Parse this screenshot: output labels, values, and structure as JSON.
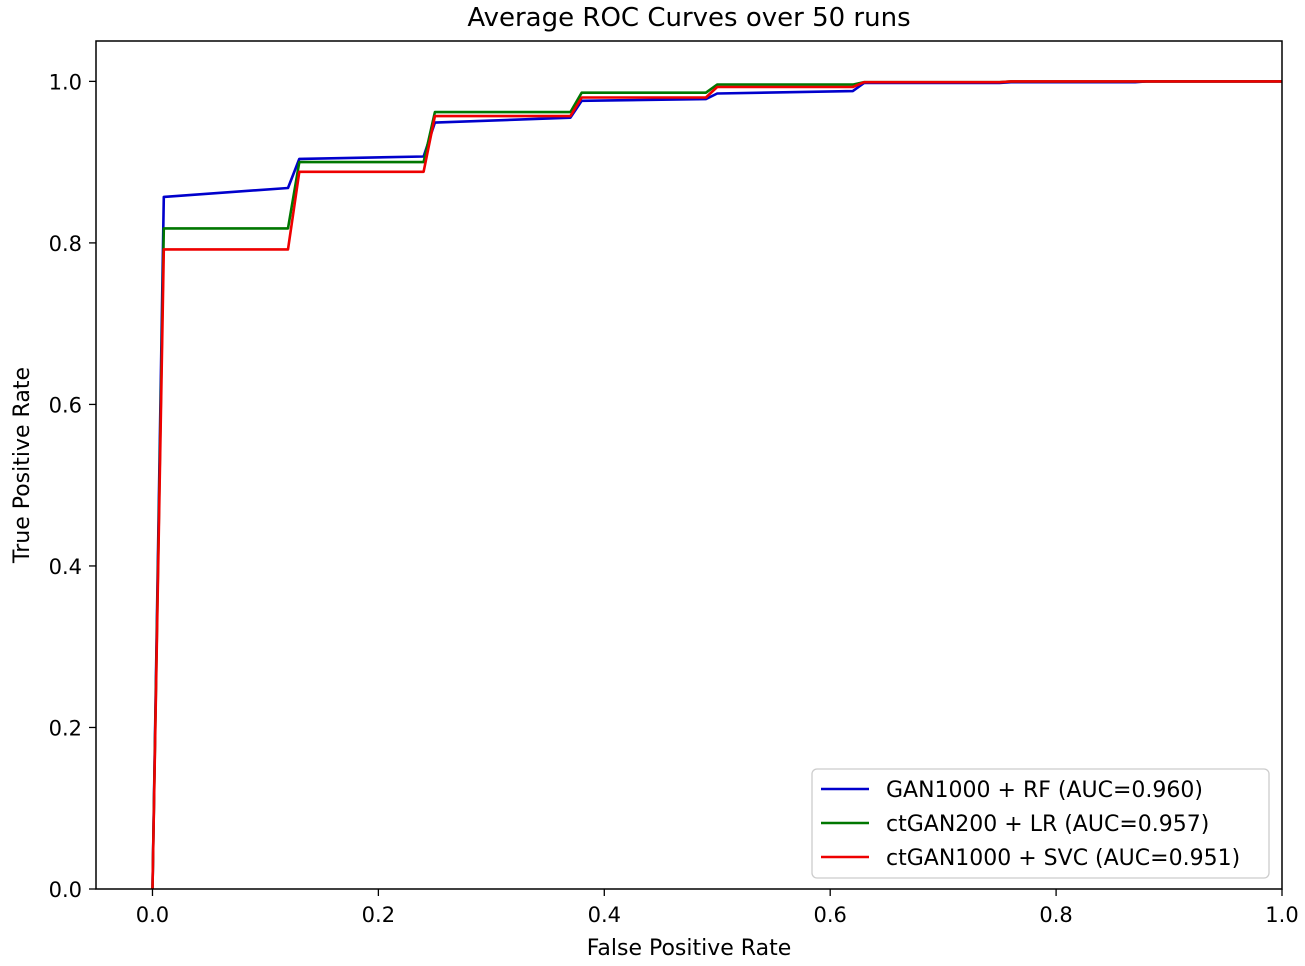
{
  "chart_data": {
    "type": "line",
    "title": "Average ROC Curves over 50 runs",
    "xlabel": "False Positive Rate",
    "ylabel": "True Positive Rate",
    "xlim": [
      -0.05,
      1.0
    ],
    "ylim": [
      0.0,
      1.05
    ],
    "xticks": [
      0.0,
      0.2,
      0.4,
      0.6,
      0.8,
      1.0
    ],
    "yticks": [
      0.0,
      0.2,
      0.4,
      0.6,
      0.8,
      1.0
    ],
    "tick_format": "0.0",
    "grid": false,
    "legend_position": "lower-right",
    "series": [
      {
        "name": "GAN1000 + RF (AUC=0.960)",
        "color": "#0000cc",
        "x": [
          0.0,
          0.01,
          0.12,
          0.13,
          0.24,
          0.25,
          0.37,
          0.38,
          0.49,
          0.5,
          0.62,
          0.63,
          0.75,
          0.76,
          0.87,
          0.88,
          1.0
        ],
        "y": [
          0.0,
          0.857,
          0.868,
          0.904,
          0.907,
          0.949,
          0.955,
          0.976,
          0.978,
          0.985,
          0.988,
          0.998,
          0.998,
          0.999,
          0.999,
          1.0,
          1.0
        ]
      },
      {
        "name": "ctGAN200 + LR (AUC=0.957)",
        "color": "#007700",
        "x": [
          0.0,
          0.01,
          0.12,
          0.13,
          0.24,
          0.25,
          0.37,
          0.38,
          0.49,
          0.5,
          0.62,
          0.63,
          0.75,
          0.76,
          1.0
        ],
        "y": [
          0.0,
          0.818,
          0.818,
          0.9,
          0.9,
          0.962,
          0.962,
          0.986,
          0.986,
          0.996,
          0.996,
          0.999,
          0.999,
          1.0,
          1.0
        ]
      },
      {
        "name": "ctGAN1000 + SVC (AUC=0.951)",
        "color": "#ee0000",
        "x": [
          0.0,
          0.01,
          0.12,
          0.13,
          0.24,
          0.25,
          0.37,
          0.38,
          0.49,
          0.5,
          0.62,
          0.63,
          0.75,
          0.76,
          1.0
        ],
        "y": [
          0.0,
          0.792,
          0.792,
          0.888,
          0.888,
          0.957,
          0.957,
          0.98,
          0.98,
          0.993,
          0.993,
          0.999,
          0.999,
          1.0,
          1.0
        ]
      }
    ]
  }
}
